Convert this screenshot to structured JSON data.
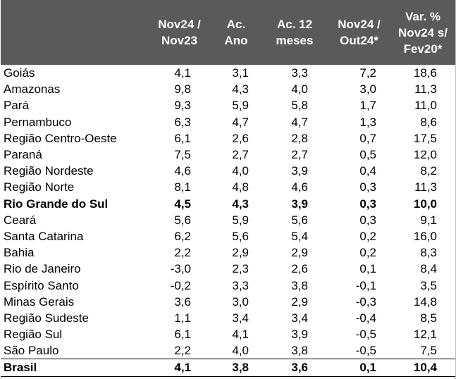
{
  "header": {
    "col0": "",
    "col1_l1": "Nov24 /",
    "col1_l2": "Nov23",
    "col2_l1": "Ac.",
    "col2_l2": "Ano",
    "col3_l1": "Ac. 12",
    "col3_l2": "meses",
    "col4_l1": "Nov24 /",
    "col4_l2": "Out24*",
    "col5_l1": "Var. %",
    "col5_l2": "Nov24 s/",
    "col5_l3": "Fev20*"
  },
  "rows": [
    {
      "name": "Goiás",
      "v1": "4,1",
      "v2": "3,1",
      "v3": "3,3",
      "v4": "7,2",
      "v5": "18,6",
      "bold": false
    },
    {
      "name": "Amazonas",
      "v1": "9,8",
      "v2": "4,3",
      "v3": "4,0",
      "v4": "3,0",
      "v5": "11,3",
      "bold": false
    },
    {
      "name": "Pará",
      "v1": "9,3",
      "v2": "5,9",
      "v3": "5,8",
      "v4": "1,7",
      "v5": "11,0",
      "bold": false
    },
    {
      "name": "Pernambuco",
      "v1": "6,3",
      "v2": "4,7",
      "v3": "4,7",
      "v4": "1,3",
      "v5": "8,6",
      "bold": false
    },
    {
      "name": "Região Centro-Oeste",
      "v1": "6,1",
      "v2": "2,6",
      "v3": "2,8",
      "v4": "0,7",
      "v5": "17,5",
      "bold": false
    },
    {
      "name": "Paraná",
      "v1": "7,5",
      "v2": "2,7",
      "v3": "2,7",
      "v4": "0,5",
      "v5": "12,0",
      "bold": false
    },
    {
      "name": "Região Nordeste",
      "v1": "4,6",
      "v2": "4,0",
      "v3": "3,9",
      "v4": "0,4",
      "v5": "8,2",
      "bold": false
    },
    {
      "name": "Região Norte",
      "v1": "8,1",
      "v2": "4,8",
      "v3": "4,6",
      "v4": "0,3",
      "v5": "11,3",
      "bold": false
    },
    {
      "name": "Rio Grande do Sul",
      "v1": "4,5",
      "v2": "4,3",
      "v3": "3,9",
      "v4": "0,3",
      "v5": "10,0",
      "bold": true
    },
    {
      "name": "Ceará",
      "v1": "5,6",
      "v2": "5,9",
      "v3": "5,6",
      "v4": "0,3",
      "v5": "9,1",
      "bold": false
    },
    {
      "name": "Santa Catarina",
      "v1": "6,2",
      "v2": "5,6",
      "v3": "5,4",
      "v4": "0,2",
      "v5": "16,0",
      "bold": false
    },
    {
      "name": "Bahia",
      "v1": "2,2",
      "v2": "2,9",
      "v3": "2,9",
      "v4": "0,2",
      "v5": "8,3",
      "bold": false
    },
    {
      "name": "Rio de Janeiro",
      "v1": "-3,0",
      "v2": "2,3",
      "v3": "2,6",
      "v4": "0,1",
      "v5": "8,4",
      "bold": false
    },
    {
      "name": "Espírito Santo",
      "v1": "-0,2",
      "v2": "3,3",
      "v3": "3,8",
      "v4": "-0,1",
      "v5": "3,5",
      "bold": false
    },
    {
      "name": "Minas Gerais",
      "v1": "3,6",
      "v2": "3,0",
      "v3": "2,9",
      "v4": "-0,3",
      "v5": "14,8",
      "bold": false
    },
    {
      "name": "Região Sudeste",
      "v1": "1,1",
      "v2": "3,4",
      "v3": "3,4",
      "v4": "-0,4",
      "v5": "8,5",
      "bold": false
    },
    {
      "name": "Região Sul",
      "v1": "6,1",
      "v2": "4,1",
      "v3": "3,9",
      "v4": "-0,5",
      "v5": "12,1",
      "bold": false
    },
    {
      "name": "São Paulo",
      "v1": "2,2",
      "v2": "4,0",
      "v3": "3,8",
      "v4": "-0,5",
      "v5": "7,5",
      "bold": false
    }
  ],
  "total": {
    "name": "Brasil",
    "v1": "4,1",
    "v2": "3,8",
    "v3": "3,6",
    "v4": "0,1",
    "v5": "10,4"
  }
}
